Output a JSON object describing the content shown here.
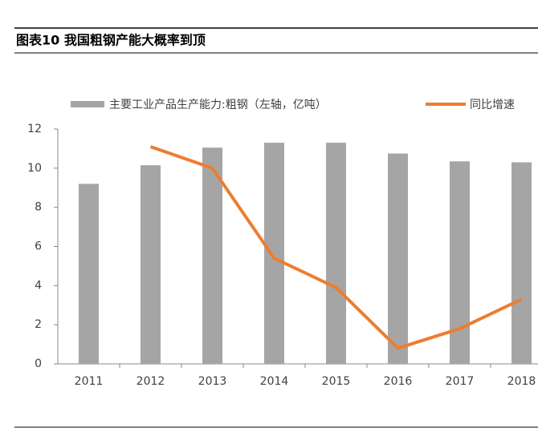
{
  "chart_data": {
    "type": "bar-line",
    "title": "图表10   我国粗钢产能大概率到顶",
    "categories": [
      "2011",
      "2012",
      "2013",
      "2014",
      "2015",
      "2016",
      "2017",
      "2018"
    ],
    "series": [
      {
        "name": "主要工业产品生产能力:粗钢（左轴，亿吨）",
        "type": "bar",
        "color": "#a5a5a5",
        "values": [
          9.2,
          10.15,
          11.05,
          11.3,
          11.3,
          10.75,
          10.35,
          10.3
        ]
      },
      {
        "name": "同比增速",
        "type": "line",
        "color": "#ed7d31",
        "values": [
          null,
          11.1,
          10.0,
          5.4,
          3.9,
          0.8,
          1.8,
          3.3
        ]
      }
    ],
    "ylim": [
      0,
      12
    ],
    "yticks": [
      0,
      2,
      4,
      6,
      8,
      10,
      12
    ]
  }
}
